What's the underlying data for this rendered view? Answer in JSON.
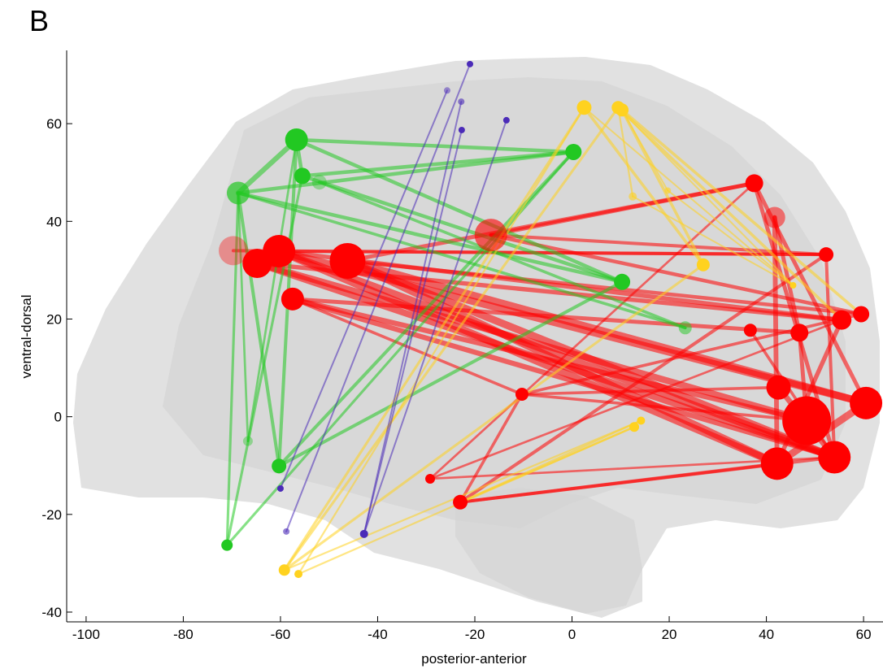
{
  "chart_data": {
    "type": "network",
    "panel_label": "B",
    "xlabel": "posterior-anterior",
    "ylabel": "ventral-dorsal",
    "xlim": [
      -104,
      64
    ],
    "ylim": [
      -42,
      75
    ],
    "xticks": [
      -100,
      -80,
      -60,
      -40,
      -20,
      0,
      20,
      40,
      60
    ],
    "yticks": [
      -40,
      -20,
      0,
      20,
      40,
      60
    ],
    "nodes": [
      {
        "x": -69.7,
        "y": 34,
        "size": 18,
        "color": "#ff0000",
        "opacity": 0.35
      },
      {
        "x": -60.3,
        "y": 33.9,
        "size": 20,
        "color": "#ff0000"
      },
      {
        "x": -64.8,
        "y": 31.4,
        "size": 18,
        "color": "#ff0000"
      },
      {
        "x": -46.2,
        "y": 31.9,
        "size": 22,
        "color": "#ff0000"
      },
      {
        "x": -57.5,
        "y": 24.1,
        "size": 14,
        "color": "#ff0000"
      },
      {
        "x": -16.7,
        "y": 37.2,
        "size": 20,
        "color": "#ff0000",
        "opacity": 0.6
      },
      {
        "x": 37.5,
        "y": 47.8,
        "size": 11,
        "color": "#ff0000"
      },
      {
        "x": 41.7,
        "y": 40.8,
        "size": 13,
        "color": "#ff0000",
        "opacity": 0.5
      },
      {
        "x": 52.3,
        "y": 33.2,
        "size": 9,
        "color": "#ff0000"
      },
      {
        "x": 59.5,
        "y": 21,
        "size": 10,
        "color": "#ff0000"
      },
      {
        "x": 55.5,
        "y": 19.8,
        "size": 12,
        "color": "#ff0000"
      },
      {
        "x": 46.8,
        "y": 17.2,
        "size": 11,
        "color": "#ff0000"
      },
      {
        "x": 36.7,
        "y": 17.7,
        "size": 8,
        "color": "#ff0000"
      },
      {
        "x": 42.5,
        "y": 6,
        "size": 15,
        "color": "#ff0000"
      },
      {
        "x": 60.5,
        "y": 2.8,
        "size": 20,
        "color": "#ff0000"
      },
      {
        "x": 48.3,
        "y": -0.8,
        "size": 30,
        "color": "#ff0000"
      },
      {
        "x": 42.2,
        "y": -9.6,
        "size": 20,
        "color": "#ff0000"
      },
      {
        "x": 54,
        "y": -8.3,
        "size": 20,
        "color": "#ff0000"
      },
      {
        "x": -10.3,
        "y": 4.6,
        "size": 8,
        "color": "#ff0000"
      },
      {
        "x": -29.2,
        "y": -12.7,
        "size": 6,
        "color": "#ff0000"
      },
      {
        "x": -23,
        "y": -17.5,
        "size": 9,
        "color": "#ff0000"
      },
      {
        "x": -56.7,
        "y": 56.7,
        "size": 14,
        "color": "#22c822"
      },
      {
        "x": -68.7,
        "y": 45.8,
        "size": 14,
        "color": "#22c822",
        "opacity": 0.7
      },
      {
        "x": -55.5,
        "y": 49.3,
        "size": 10,
        "color": "#22c822"
      },
      {
        "x": -52,
        "y": 48,
        "size": 9,
        "color": "#22c822",
        "opacity": 0.4
      },
      {
        "x": 0.3,
        "y": 54.2,
        "size": 10,
        "color": "#22c822"
      },
      {
        "x": 10.3,
        "y": 27.6,
        "size": 10,
        "color": "#22c822"
      },
      {
        "x": 23.3,
        "y": 18.2,
        "size": 8,
        "color": "#22c822",
        "opacity": 0.5
      },
      {
        "x": -60.3,
        "y": -10.1,
        "size": 9,
        "color": "#22c822"
      },
      {
        "x": -71,
        "y": -26.3,
        "size": 7,
        "color": "#22c822"
      },
      {
        "x": -66.7,
        "y": -5,
        "size": 6,
        "color": "#22c822",
        "opacity": 0.4
      },
      {
        "x": 2.5,
        "y": 63.3,
        "size": 9,
        "color": "#ffd21f"
      },
      {
        "x": 9.5,
        "y": 63.3,
        "size": 8,
        "color": "#ffd21f"
      },
      {
        "x": 10.3,
        "y": 62.8,
        "size": 8,
        "color": "#ffd21f"
      },
      {
        "x": 27,
        "y": 31.1,
        "size": 8,
        "color": "#ffd21f"
      },
      {
        "x": 14.2,
        "y": -0.8,
        "size": 5,
        "color": "#ffd21f"
      },
      {
        "x": 12.8,
        "y": -2.1,
        "size": 6,
        "color": "#ffd21f"
      },
      {
        "x": -59.2,
        "y": -31.4,
        "size": 7,
        "color": "#ffd21f"
      },
      {
        "x": -56.3,
        "y": -32.2,
        "size": 5,
        "color": "#ffd21f"
      },
      {
        "x": 45.5,
        "y": 26.9,
        "size": 4,
        "color": "#ffd21f"
      },
      {
        "x": 12.5,
        "y": 45.1,
        "size": 5,
        "color": "#ffd21f",
        "opacity": 0.6
      },
      {
        "x": 19.7,
        "y": 46.3,
        "size": 4,
        "color": "#ffd21f",
        "opacity": 0.6
      },
      {
        "x": -21,
        "y": 72.2,
        "size": 4,
        "color": "#4b2bb8"
      },
      {
        "x": -25.7,
        "y": 66.8,
        "size": 4,
        "color": "#4b2bb8",
        "opacity": 0.5
      },
      {
        "x": -22.8,
        "y": 64.5,
        "size": 4,
        "color": "#4b2bb8",
        "opacity": 0.6
      },
      {
        "x": -22.7,
        "y": 58.7,
        "size": 4,
        "color": "#4b2bb8"
      },
      {
        "x": -13.5,
        "y": 60.7,
        "size": 4,
        "color": "#4b2bb8"
      },
      {
        "x": -60,
        "y": -14.7,
        "size": 4,
        "color": "#4b2bb8"
      },
      {
        "x": -58.8,
        "y": -23.5,
        "size": 4,
        "color": "#4b2bb8",
        "opacity": 0.6
      },
      {
        "x": -42.8,
        "y": -24,
        "size": 5,
        "color": "#4b2bb8"
      }
    ],
    "edges": [
      [
        1,
        17
      ],
      [
        1,
        16
      ],
      [
        1,
        14
      ],
      [
        1,
        10
      ],
      [
        1,
        8
      ],
      [
        2,
        17
      ],
      [
        2,
        15
      ],
      [
        2,
        10
      ],
      [
        3,
        16
      ],
      [
        3,
        17
      ],
      [
        3,
        14
      ],
      [
        3,
        9
      ],
      [
        3,
        6
      ],
      [
        4,
        17
      ],
      [
        4,
        15
      ],
      [
        4,
        18
      ],
      [
        4,
        11
      ],
      [
        0,
        8
      ],
      [
        5,
        8
      ],
      [
        5,
        9
      ],
      [
        5,
        6
      ],
      [
        6,
        17
      ],
      [
        6,
        14
      ],
      [
        7,
        11
      ],
      [
        7,
        16
      ],
      [
        8,
        17
      ],
      [
        9,
        18
      ],
      [
        10,
        16
      ],
      [
        11,
        15
      ],
      [
        12,
        17
      ],
      [
        14,
        16
      ],
      [
        15,
        18
      ],
      [
        19,
        10
      ],
      [
        19,
        17
      ],
      [
        19,
        6
      ],
      [
        20,
        17
      ],
      [
        20,
        16
      ],
      [
        20,
        18
      ],
      [
        20,
        8
      ],
      [
        13,
        17
      ],
      [
        13,
        18
      ],
      [
        21,
        25
      ],
      [
        21,
        22
      ],
      [
        21,
        23
      ],
      [
        22,
        25
      ],
      [
        22,
        26
      ],
      [
        23,
        26
      ],
      [
        23,
        25
      ],
      [
        21,
        26
      ],
      [
        22,
        28
      ],
      [
        21,
        28
      ],
      [
        22,
        29
      ],
      [
        28,
        26
      ],
      [
        29,
        25
      ],
      [
        29,
        23
      ],
      [
        30,
        21
      ],
      [
        30,
        22
      ],
      [
        28,
        25
      ],
      [
        24,
        27
      ],
      [
        22,
        27
      ],
      [
        31,
        34
      ],
      [
        31,
        39
      ],
      [
        32,
        39
      ],
      [
        33,
        34
      ],
      [
        32,
        40
      ],
      [
        33,
        41
      ],
      [
        31,
        37
      ],
      [
        32,
        37
      ],
      [
        31,
        38
      ],
      [
        34,
        37
      ],
      [
        35,
        37
      ],
      [
        36,
        38
      ],
      [
        36,
        20
      ],
      [
        35,
        20
      ],
      [
        40,
        39
      ],
      [
        41,
        39
      ],
      [
        33,
        9
      ],
      [
        32,
        10
      ],
      [
        42,
        48
      ],
      [
        43,
        47
      ],
      [
        44,
        49
      ],
      [
        45,
        49
      ],
      [
        46,
        49
      ]
    ]
  }
}
